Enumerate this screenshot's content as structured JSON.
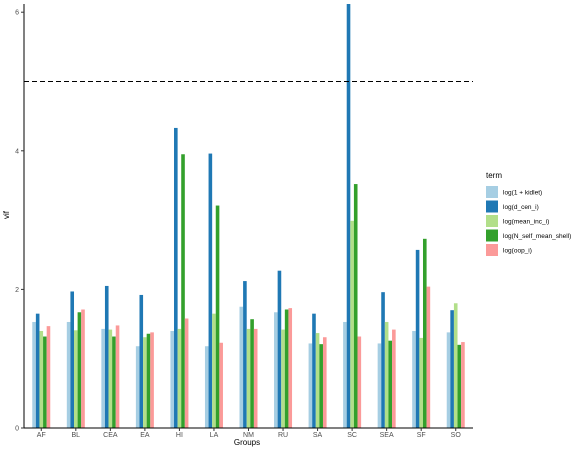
{
  "chart_data": {
    "type": "bar",
    "title": "",
    "xlabel": "Groups",
    "ylabel": "vif",
    "ylim": [
      0,
      6.1
    ],
    "yticks": [
      0,
      2,
      4,
      6
    ],
    "categories": [
      "AF",
      "BL",
      "CEA",
      "EA",
      "HI",
      "LA",
      "NM",
      "RU",
      "SA",
      "SC",
      "SEA",
      "SF",
      "SO"
    ],
    "reference_line": {
      "y": 5,
      "style": "dashed"
    },
    "legend": {
      "title": "term",
      "position": "right"
    },
    "series": [
      {
        "name": "log(1 + kidlet)",
        "color": "#a6cee3",
        "values": [
          1.53,
          1.53,
          1.43,
          1.18,
          1.4,
          1.18,
          1.75,
          1.67,
          1.22,
          1.53,
          1.22,
          1.4,
          1.38
        ]
      },
      {
        "name": "log(d_cen_i)",
        "color": "#1f78b4",
        "values": [
          1.65,
          1.97,
          2.05,
          1.92,
          4.33,
          3.96,
          2.12,
          2.27,
          1.65,
          6.12,
          1.96,
          2.57,
          1.7
        ]
      },
      {
        "name": "log(mean_inc_i)",
        "color": "#b2df8a",
        "values": [
          1.4,
          1.41,
          1.42,
          1.31,
          1.43,
          1.65,
          1.43,
          1.42,
          1.37,
          2.99,
          1.53,
          1.3,
          1.8
        ]
      },
      {
        "name": "log(N_self_mean_shell)",
        "color": "#33a02c",
        "values": [
          1.32,
          1.67,
          1.32,
          1.36,
          3.95,
          3.21,
          1.57,
          1.71,
          1.21,
          3.52,
          1.26,
          2.73,
          1.2
        ]
      },
      {
        "name": "log(oop_i)",
        "color": "#fb9a99",
        "values": [
          1.47,
          1.71,
          1.48,
          1.38,
          1.58,
          1.23,
          1.43,
          1.73,
          1.31,
          1.32,
          1.42,
          2.04,
          1.24
        ]
      }
    ]
  }
}
